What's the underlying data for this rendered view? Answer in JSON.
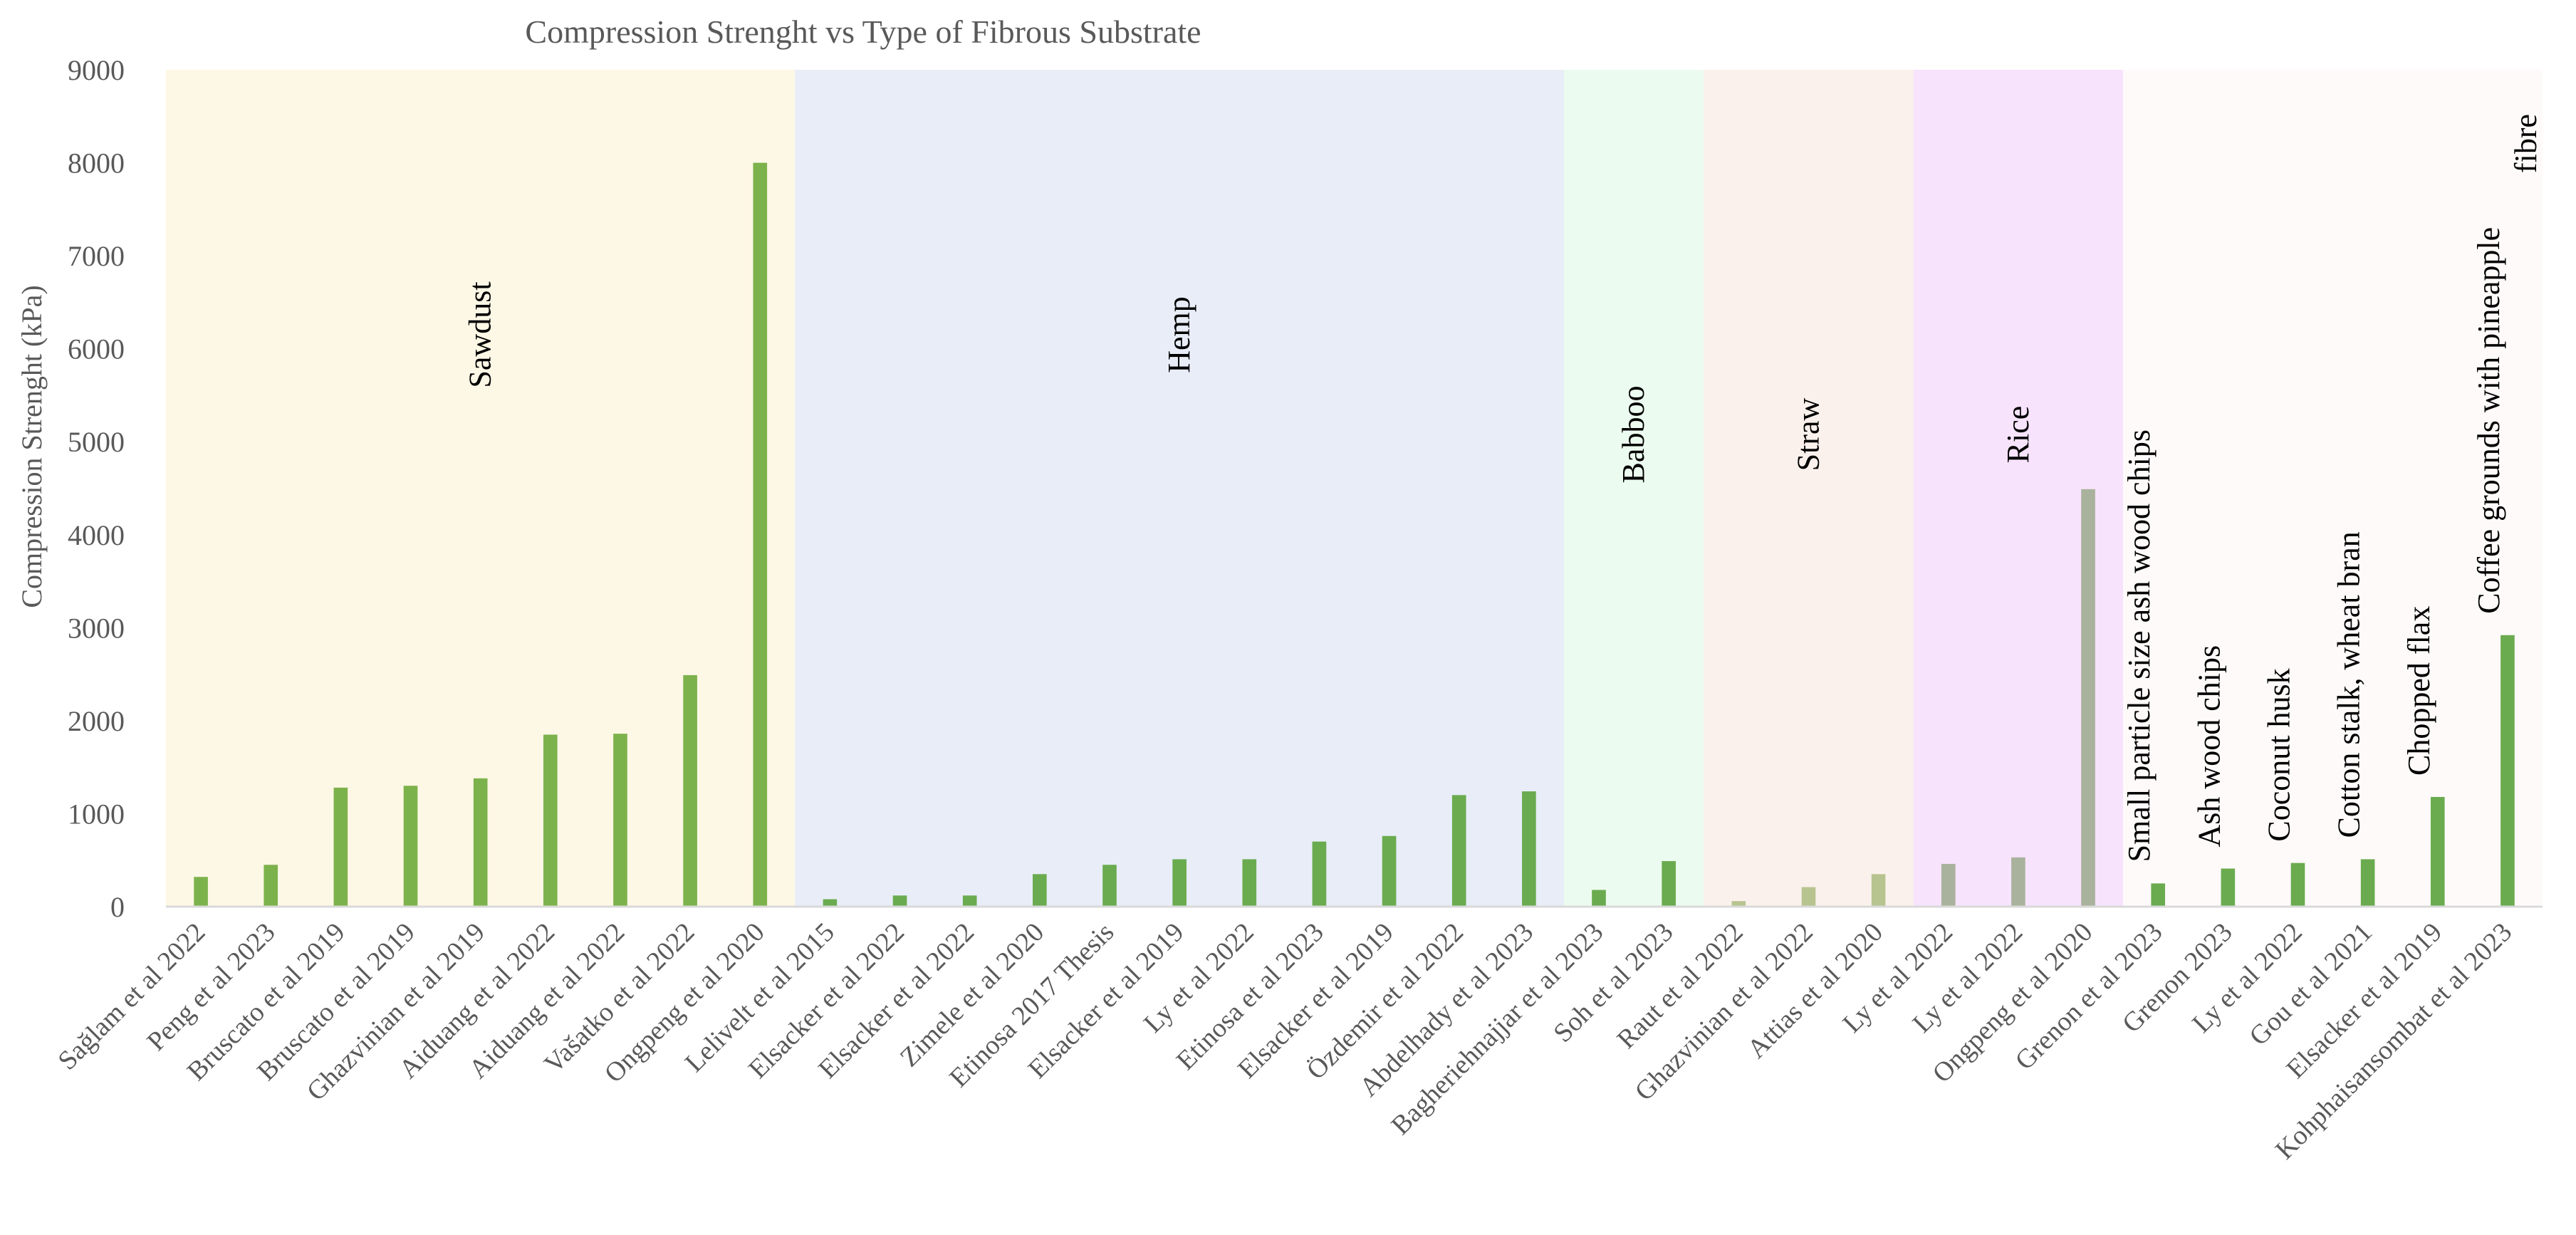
{
  "chart_data": {
    "type": "bar",
    "title": "Compression Strenght vs Type of Fibrous Substrate",
    "ylabel": "Compression Strenght (kPa)",
    "xlabel": "",
    "ylim": [
      0,
      9000
    ],
    "yticks": [
      "0",
      "1000",
      "2000",
      "3000",
      "4000",
      "5000",
      "6000",
      "7000",
      "8000",
      "9000"
    ],
    "grid": false,
    "categories": [
      "Sağlam et al 2022",
      "Peng et al 2023",
      "Bruscato et al 2019",
      "Bruscato et al 2019",
      "Ghazvinian et al 2019",
      "Aiduang et al 2022",
      "Aiduang et al 2022",
      "Vašatko et al 2022",
      "Ongpeng et al 2020",
      "Lelivelt et al 2015",
      "Elsacker et al 2022",
      "Elsacker et al 2022",
      "Zimele et al 2020",
      "Etinosa 2017 Thesis",
      "Elsacker et al 2019",
      "Ly et al 2022",
      "Etinosa et al 2023",
      "Elsacker et al 2019",
      "Özdemir et al 2022",
      "Abdelhady et al 2023",
      "Bagheriehnajjar et al 2023",
      "Soh et al 2023",
      "Raut et al 2022",
      "Ghazvinian et al 2022",
      "Attias et al 2020",
      "Ly et al 2022",
      "Ly et al 2022",
      "Ongpeng et al 2020",
      "Grenon et al 2023",
      "Grenon 2023",
      "Ly et al 2022",
      "Gou et al 2021",
      "Elsacker et al 2019",
      "Kohphaisansombat et al 2023"
    ],
    "values": [
      320,
      450,
      1280,
      1300,
      1380,
      1850,
      1860,
      2490,
      8000,
      80,
      120,
      120,
      350,
      450,
      510,
      510,
      700,
      760,
      1200,
      1240,
      180,
      490,
      60,
      210,
      350,
      460,
      530,
      4490,
      250,
      410,
      470,
      510,
      1180,
      2920
    ],
    "bar_colors": [
      "#7cb24b",
      "#7cb24b",
      "#7cb24b",
      "#7cb24b",
      "#7cb24b",
      "#7cb24b",
      "#7cb24b",
      "#7cb24b",
      "#7cb24b",
      "#6aab4f",
      "#6aab4f",
      "#6aab4f",
      "#6aab4f",
      "#6aab4f",
      "#6aab4f",
      "#6aab4f",
      "#6aab4f",
      "#6aab4f",
      "#6aab4f",
      "#6aab4f",
      "#6aab4f",
      "#6aab4f",
      "#b7c48f",
      "#b7c48f",
      "#b7c48f",
      "#a9b29c",
      "#a9b29c",
      "#a9b29c",
      "#6aab4f",
      "#6aab4f",
      "#6aab4f",
      "#6aab4f",
      "#6aab4f",
      "#6aab4f"
    ],
    "groups": [
      {
        "name": "Sawdust",
        "color": "#fdf7e5",
        "start": 0,
        "end": 8
      },
      {
        "name": "Hemp",
        "color": "#e8edf7",
        "start": 9,
        "end": 19
      },
      {
        "name": "Babboo",
        "color": "#ecfbef",
        "start": 20,
        "end": 21
      },
      {
        "name": "Straw",
        "color": "#fbf1ec",
        "start": 22,
        "end": 24
      },
      {
        "name": "Rice",
        "color": "#f7e3fb",
        "start": 25,
        "end": 27
      },
      {
        "name": "",
        "color": "#fefafa",
        "start": 28,
        "end": 33
      }
    ],
    "bar_annotations": [
      {
        "index": 28,
        "lines": [
          "Small particle size ash wood chips"
        ]
      },
      {
        "index": 29,
        "lines": [
          "Ash wood chips"
        ]
      },
      {
        "index": 30,
        "lines": [
          "Coconut husk"
        ]
      },
      {
        "index": 31,
        "lines": [
          "Cotton stalk, wheat bran"
        ]
      },
      {
        "index": 32,
        "lines": [
          "Chopped flax"
        ]
      },
      {
        "index": 33,
        "lines": [
          "Coffee grounds with pineapple",
          "fibre"
        ]
      }
    ]
  }
}
